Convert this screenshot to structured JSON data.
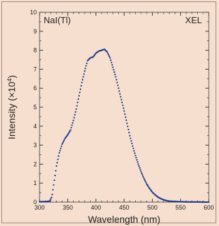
{
  "chart_data": {
    "type": "scatter",
    "xlabel": "Wavelength (nm)",
    "ylabel_prefix": "Intensity (×10",
    "ylabel_exp": "4",
    "ylabel_suffix": ")",
    "xlim": [
      300,
      600
    ],
    "ylim": [
      0,
      10
    ],
    "x_ticks": [
      300,
      350,
      400,
      450,
      500,
      550,
      600
    ],
    "y_ticks": [
      0,
      1,
      2,
      3,
      4,
      5,
      6,
      7,
      8,
      9,
      10
    ],
    "annotations": {
      "left": "NaI(Tl)",
      "right": "XEL"
    },
    "marker_color": "#1f3a8a",
    "grid": false,
    "series": [
      {
        "x": [
          300,
          310,
          318,
          322,
          326,
          330,
          335,
          340,
          345,
          350,
          355,
          360,
          365,
          370,
          375,
          380,
          385,
          390,
          395,
          400,
          405,
          410,
          415,
          420,
          425,
          430,
          435,
          440,
          445,
          450,
          455,
          460,
          465,
          470,
          475,
          480,
          485,
          490,
          495,
          500,
          505,
          510,
          515,
          520,
          525,
          530,
          540,
          550,
          560,
          570,
          580,
          590,
          600
        ],
        "y": [
          0.02,
          0.02,
          0.05,
          0.3,
          1.1,
          1.9,
          2.6,
          3.05,
          3.35,
          3.55,
          3.8,
          4.3,
          4.9,
          5.6,
          6.3,
          6.9,
          7.45,
          7.6,
          7.65,
          7.85,
          7.95,
          8.0,
          8.05,
          7.9,
          7.6,
          7.1,
          6.6,
          6.0,
          5.4,
          4.8,
          4.15,
          3.5,
          2.95,
          2.45,
          2.0,
          1.6,
          1.25,
          0.95,
          0.72,
          0.52,
          0.38,
          0.26,
          0.18,
          0.12,
          0.08,
          0.05,
          0.03,
          0.02,
          0.01,
          0.01,
          0.01,
          0.0,
          0.0
        ]
      }
    ]
  }
}
